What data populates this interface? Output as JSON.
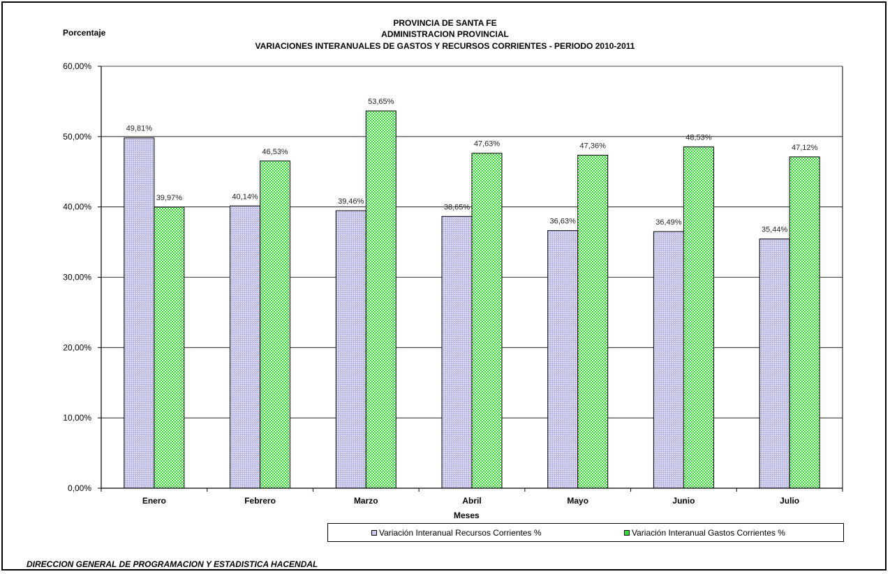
{
  "header": {
    "line1": "PROVINCIA DE SANTA FE",
    "line2": "ADMINISTRACION PROVINCIAL",
    "line3": "VARIACIONES INTERANUALES DE GASTOS Y RECURSOS  CORRIENTES - PERIODO 2010-2011"
  },
  "footer": "DIRECCION GENERAL DE PROGRAMACION Y ESTADISTICA HACENDAL",
  "colors": {
    "recursos": "#c8c8ec",
    "gastos": "#33dd33"
  },
  "chart_data": {
    "type": "bar",
    "title": "PROVINCIA DE SANTA FE / ADMINISTRACION PROVINCIAL / VARIACIONES INTERANUALES DE GASTOS Y RECURSOS  CORRIENTES - PERIODO 2010-2011",
    "xlabel": "Meses",
    "ylabel": "Porcentaje",
    "ylim": [
      0,
      60
    ],
    "yticks": [
      "0,00%",
      "10,00%",
      "20,00%",
      "30,00%",
      "40,00%",
      "50,00%",
      "60,00%"
    ],
    "grid": true,
    "legend_position": "bottom",
    "categories": [
      "Enero",
      "Febrero",
      "Marzo",
      "Abril",
      "Mayo",
      "Junio",
      "Julio"
    ],
    "series": [
      {
        "name": "Variación Interanual Recursos Corrientes %",
        "values": [
          49.81,
          40.14,
          39.46,
          38.65,
          36.63,
          36.49,
          35.44
        ],
        "labels": [
          "49,81%",
          "40,14%",
          "39,46%",
          "38,65%",
          "36,63%",
          "36,49%",
          "35,44%"
        ]
      },
      {
        "name": "Variación Interanual Gastos Corrientes %",
        "values": [
          39.97,
          46.53,
          53.65,
          47.63,
          47.36,
          48.53,
          47.12
        ],
        "labels": [
          "39,97%",
          "46,53%",
          "53,65%",
          "47,63%",
          "47,36%",
          "48,53%",
          "47,12%"
        ]
      }
    ]
  }
}
